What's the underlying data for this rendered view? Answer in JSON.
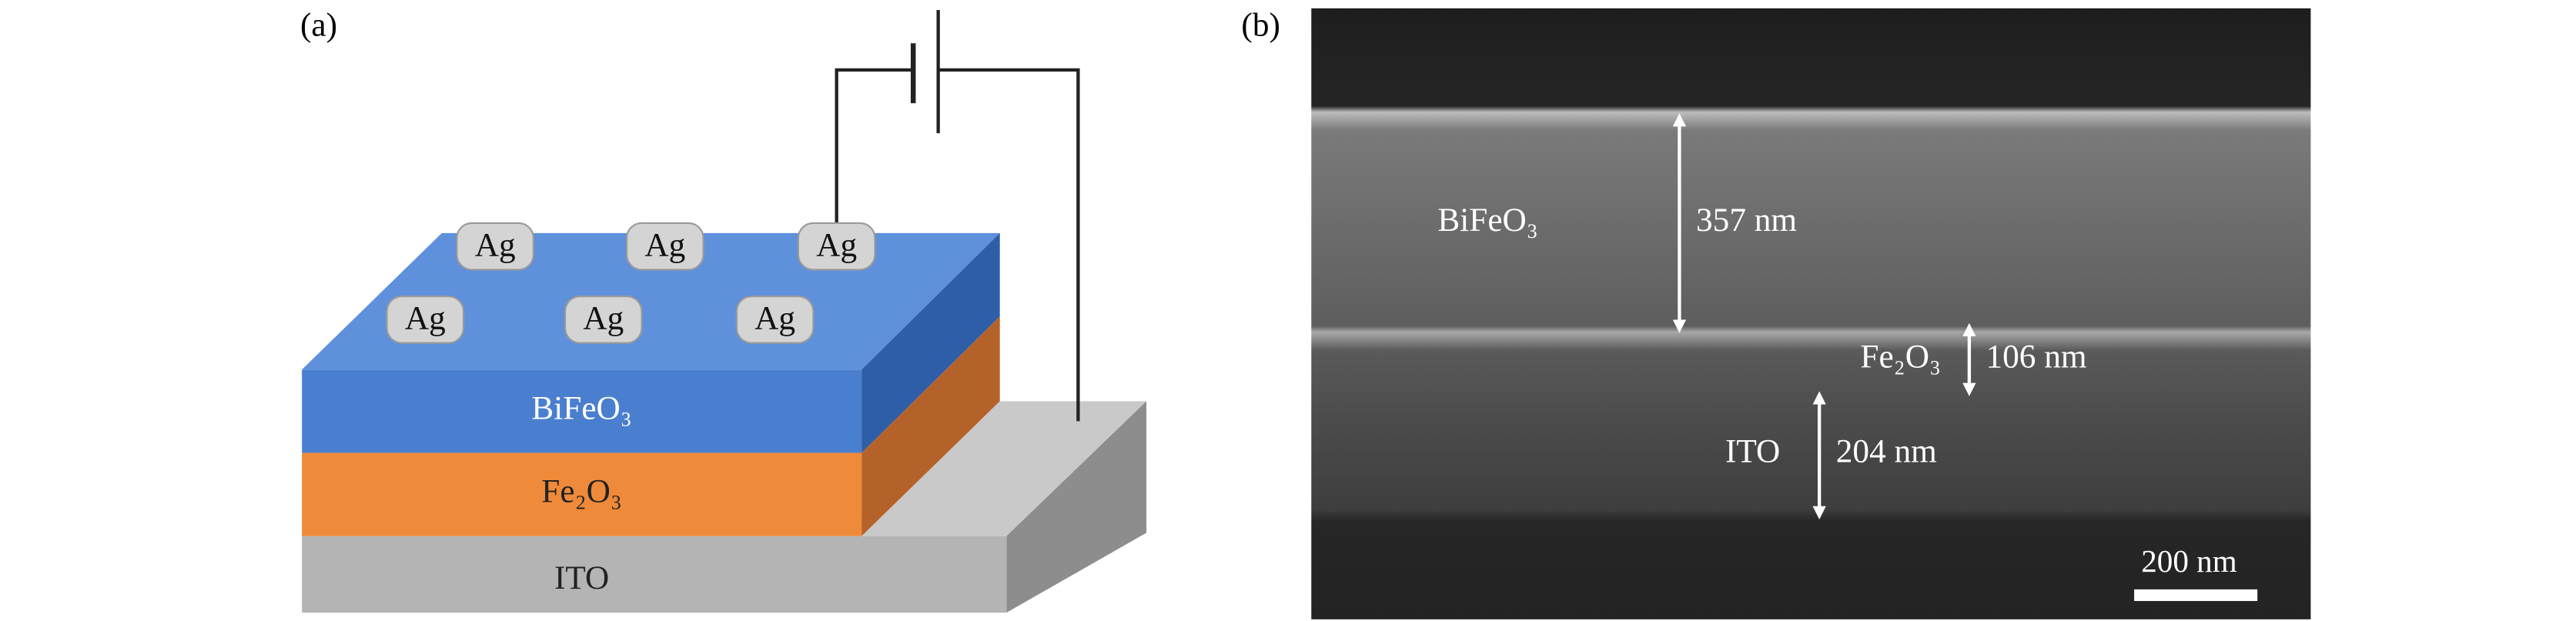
{
  "panel_a": {
    "label": "(a)",
    "electrodes": [
      "Ag",
      "Ag",
      "Ag",
      "Ag",
      "Ag",
      "Ag"
    ],
    "layers": [
      "BiFeO₃",
      "Fe₂O₃",
      "ITO"
    ]
  },
  "panel_b": {
    "label": "(b)",
    "layers": [
      {
        "name": "BiFeO₃",
        "thickness": "357 nm"
      },
      {
        "name": "Fe₂O₃",
        "thickness": "106 nm"
      },
      {
        "name": "ITO",
        "thickness": "204 nm"
      }
    ],
    "scale_bar": "200 nm"
  }
}
